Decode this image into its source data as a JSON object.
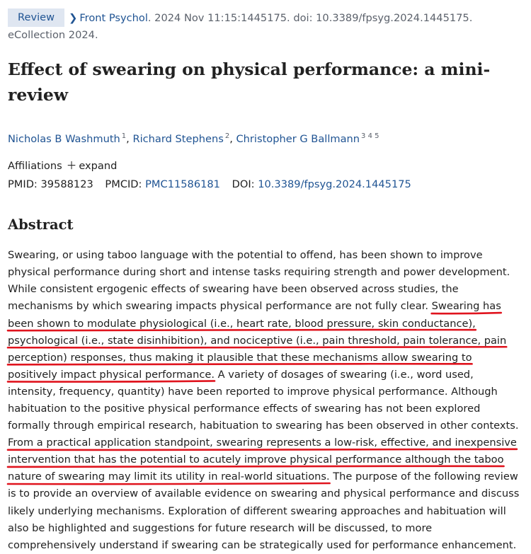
{
  "header": {
    "badge": "Review",
    "journal": "Front Psychol",
    "citation": ". 2024 Nov 11:15:1445175. doi: 10.3389/fpsyg.2024.1445175.",
    "ecollection": "eCollection 2024."
  },
  "article": {
    "title": "Effect of swearing on physical performance: a mini-review",
    "authors": [
      {
        "name": "Nicholas B Washmuth",
        "sup": "1"
      },
      {
        "name": "Richard Stephens",
        "sup": "2"
      },
      {
        "name": "Christopher G Ballmann",
        "sup": "3 4 5"
      }
    ],
    "affiliations_label": "Affiliations",
    "expand_label": "expand",
    "pmid_label": "PMID:",
    "pmid": "39588123",
    "pmcid_label": "PMCID:",
    "pmcid": "PMC11586181",
    "doi_label": "DOI:",
    "doi": "10.3389/fpsyg.2024.1445175"
  },
  "abstract": {
    "heading": "Abstract",
    "seg1": "Swearing, or using taboo language with the potential to offend, has been shown to improve physical performance during short and intense tasks requiring strength and power development. While consistent ergogenic effects of swearing have been observed across studies, the mechanisms by which swearing impacts physical performance are not fully clear. ",
    "seg2": "Swearing has been shown to modulate physiological (i.e., heart rate, blood pressure, skin conductance), psychological (i.e., state disinhibition), and nociceptive (i.e., pain threshold, pain tolerance, pain perception) responses, thus making it plausible that these mechanisms allow swearing to positively impact physical performance.",
    "seg3": " A variety of dosages of swearing (i.e., word used, intensity, frequency, quantity) have been reported to improve physical performance. Although habituation to the positive physical performance effects of swearing has not been explored formally through empirical research, habituation to swearing has been observed in other contexts. ",
    "seg4": "From a practical application standpoint, swearing represents a low-risk, effective, and inexpensive intervention that has the potential to acutely improve physical performance although the taboo nature of swearing may limit its utility in real-world situations.",
    "seg5": " The purpose of the following review is to provide an overview of available evidence on swearing and physical performance and discuss likely underlying mechanisms. Exploration of different swearing approaches and habituation will also be highlighted and suggestions for future research will be discussed, to more comprehensively understand if swearing can be strategically used for performance enhancement."
  },
  "annotation": {
    "underline_color": "#e0141e"
  }
}
